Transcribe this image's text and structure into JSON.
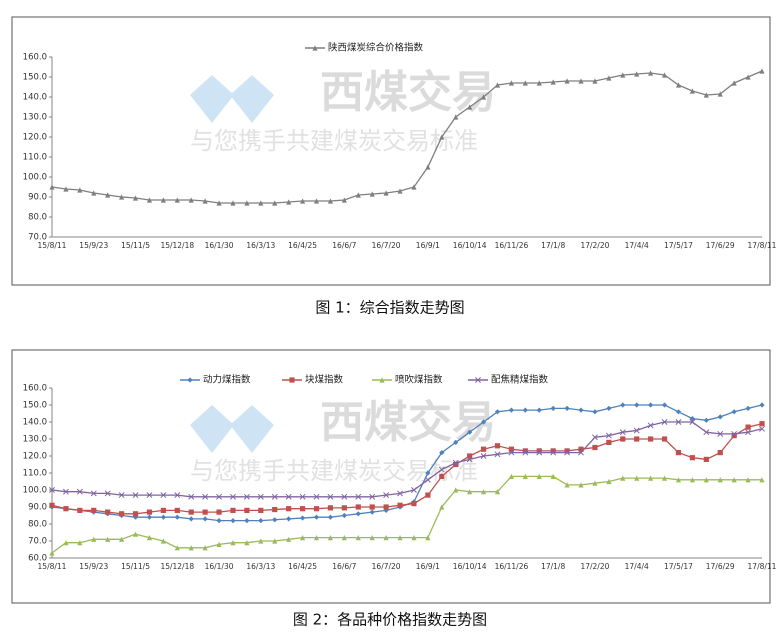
{
  "chart_data": [
    {
      "type": "line",
      "categories": [
        "15/8/11",
        null,
        null,
        "15/9/23",
        null,
        null,
        "15/11/5",
        null,
        null,
        "15/12/18",
        null,
        null,
        "16/1/30",
        null,
        null,
        "16/3/13",
        null,
        null,
        "16/4/25",
        null,
        null,
        "16/6/7",
        null,
        null,
        "16/7/20",
        null,
        null,
        "16/9/1",
        null,
        null,
        "16/10/14",
        null,
        null,
        "16/11/26",
        null,
        null,
        "17/1/8",
        null,
        null,
        "17/2/20",
        null,
        null,
        "17/4/4",
        null,
        null,
        "17/5/17",
        null,
        null,
        "17/6/29",
        null,
        null,
        "17/8/11"
      ],
      "series": [
        {
          "name": "陕西煤炭综合价格指数",
          "color": "#7f7f7f",
          "marker": "triangle",
          "values": [
            95,
            94,
            93.5,
            92,
            91,
            90,
            89.5,
            88.5,
            88.5,
            88.5,
            88.5,
            88,
            87,
            87,
            87,
            87,
            87,
            87.5,
            88,
            88,
            88,
            88.5,
            91,
            91.5,
            92,
            93,
            95,
            105,
            120,
            130,
            135,
            140,
            146,
            147,
            147,
            147,
            147.5,
            148,
            148,
            148,
            149.5,
            151,
            151.5,
            152,
            151,
            146,
            143,
            141,
            141.5,
            147,
            150,
            153
          ]
        }
      ],
      "ylim": [
        70,
        160
      ],
      "yticks": [
        {
          "value": 70,
          "label": "70.0"
        },
        {
          "value": 80,
          "label": "80.0"
        },
        {
          "value": 90,
          "label": "90.0"
        },
        {
          "value": 100,
          "label": "100.0"
        },
        {
          "value": 110,
          "label": "110.0"
        },
        {
          "value": 120,
          "label": "120.0"
        },
        {
          "value": 130,
          "label": "130.0"
        },
        {
          "value": 140,
          "label": "140.0"
        },
        {
          "value": 150,
          "label": "150.0"
        },
        {
          "value": 160,
          "label": "160.0"
        }
      ],
      "caption": "图 1：综合指数走势图"
    },
    {
      "type": "line",
      "categories": [
        "15/8/11",
        null,
        null,
        "15/9/23",
        null,
        null,
        "15/11/5",
        null,
        null,
        "15/12/18",
        null,
        null,
        "16/1/30",
        null,
        null,
        "16/3/13",
        null,
        null,
        "16/4/25",
        null,
        null,
        "16/6/7",
        null,
        null,
        "16/7/20",
        null,
        null,
        "16/9/1",
        null,
        null,
        "16/10/14",
        null,
        null,
        "16/11/26",
        null,
        null,
        "17/1/8",
        null,
        null,
        "17/2/20",
        null,
        null,
        "17/4/4",
        null,
        null,
        "17/5/17",
        null,
        null,
        "17/6/29",
        null,
        null,
        "17/8/11"
      ],
      "series": [
        {
          "name": "动力煤指数",
          "color": "#4f81bd",
          "marker": "diamond",
          "values": [
            90,
            89,
            88,
            87,
            86,
            85,
            84,
            84,
            84,
            84,
            83,
            83,
            82,
            82,
            82,
            82,
            82.5,
            83,
            83.5,
            84,
            84,
            85,
            86,
            87,
            88,
            90,
            93,
            110,
            122,
            128,
            134,
            140,
            146,
            147,
            147,
            147,
            148,
            148,
            147,
            146,
            148,
            150,
            150,
            150,
            150,
            146,
            142,
            141,
            143,
            146,
            148,
            150
          ]
        },
        {
          "name": "块煤指数",
          "color": "#c0504d",
          "marker": "square",
          "values": [
            91,
            89,
            88,
            88,
            87,
            86,
            86,
            87,
            88,
            88,
            87,
            87,
            87,
            88,
            88,
            88,
            88.5,
            89,
            89,
            89,
            89.5,
            89.5,
            90,
            90,
            90,
            91,
            92,
            97,
            108,
            115,
            120,
            124,
            126,
            124,
            123,
            123,
            123,
            123,
            124,
            125,
            128,
            130,
            130,
            130,
            130,
            122,
            119,
            118,
            122,
            132,
            137,
            139
          ]
        },
        {
          "name": "喷吹煤指数",
          "color": "#9bbb59",
          "marker": "triangle",
          "values": [
            63,
            69,
            69,
            71,
            71,
            71,
            74,
            72,
            70,
            66,
            66,
            66,
            68,
            69,
            69,
            70,
            70,
            71,
            72,
            72,
            72,
            72,
            72,
            72,
            72,
            72,
            72,
            72,
            90,
            100,
            99,
            99,
            99,
            108,
            108,
            108,
            108,
            103,
            103,
            104,
            105,
            107,
            107,
            107,
            107,
            106,
            106,
            106,
            106,
            106,
            106,
            106
          ]
        },
        {
          "name": "配焦精煤指数",
          "color": "#8064a2",
          "marker": "cross",
          "values": [
            100,
            99,
            99,
            98,
            98,
            97,
            97,
            97,
            97,
            97,
            96,
            96,
            96,
            96,
            96,
            96,
            96,
            96,
            96,
            96,
            96,
            96,
            96,
            96,
            97,
            98,
            100,
            106,
            112,
            116,
            118,
            120,
            121,
            122,
            122,
            122,
            122,
            122,
            122,
            131,
            132,
            134,
            135,
            138,
            140,
            140,
            140,
            134,
            133,
            133,
            134,
            136
          ]
        }
      ],
      "ylim": [
        60,
        160
      ],
      "yticks": [
        {
          "value": 60,
          "label": "60.0"
        },
        {
          "value": 70,
          "label": "70.0"
        },
        {
          "value": 80,
          "label": "80.0"
        },
        {
          "value": 90,
          "label": "90.0"
        },
        {
          "value": 100,
          "label": "100.0"
        },
        {
          "value": 110,
          "label": "110.0"
        },
        {
          "value": 120,
          "label": "120.0"
        },
        {
          "value": 130,
          "label": "130.0"
        },
        {
          "value": 140,
          "label": "140.0"
        },
        {
          "value": 150,
          "label": "150.0"
        },
        {
          "value": 160,
          "label": "160.0"
        }
      ],
      "caption": "图 2：各品种价格指数走势图"
    }
  ],
  "watermark": {
    "brand": "西煤交易",
    "slogan": "与您携手共建煤炭交易标准"
  }
}
